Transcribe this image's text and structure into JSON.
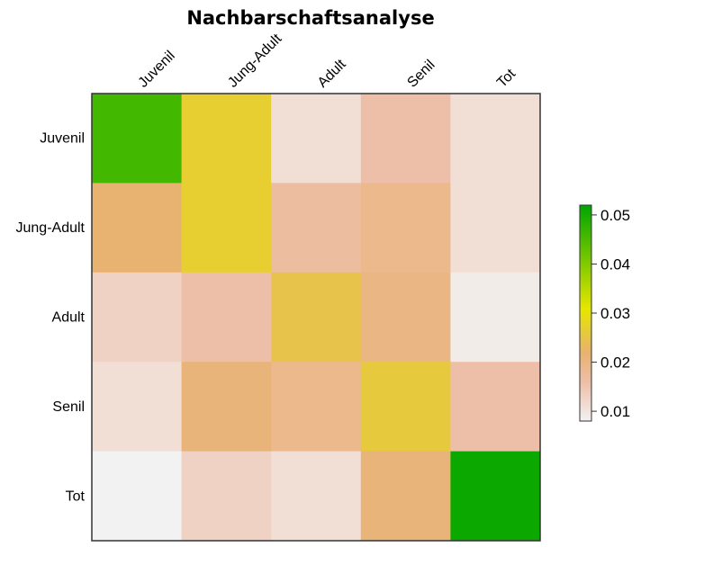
{
  "chart_data": {
    "type": "heatmap",
    "title": "Nachbarschaftsanalyse",
    "xlabel": "",
    "ylabel": "",
    "x_categories": [
      "Juvenil",
      "Jung-Adult",
      "Adult",
      "Senil",
      "Tot"
    ],
    "y_categories": [
      "Juvenil",
      "Jung-Adult",
      "Adult",
      "Senil",
      "Tot"
    ],
    "values": [
      [
        0.046,
        0.027,
        0.011,
        0.016,
        0.011
      ],
      [
        0.022,
        0.027,
        0.017,
        0.019,
        0.011
      ],
      [
        0.013,
        0.016,
        0.025,
        0.02,
        0.009
      ],
      [
        0.011,
        0.021,
        0.019,
        0.026,
        0.016
      ],
      [
        0.008,
        0.013,
        0.011,
        0.021,
        0.051
      ]
    ],
    "colorbar": {
      "ticks": [
        "0.01",
        "0.02",
        "0.03",
        "0.04",
        "0.05"
      ],
      "tick_values": [
        0.01,
        0.02,
        0.03,
        0.04,
        0.05
      ],
      "range": [
        0.008,
        0.052
      ],
      "colors": [
        "#f2f2f2",
        "#eebfa8",
        "#e8b270",
        "#e6e600",
        "#00a600"
      ],
      "color_stops": [
        0.008,
        0.016,
        0.022,
        0.031,
        0.052
      ]
    }
  }
}
